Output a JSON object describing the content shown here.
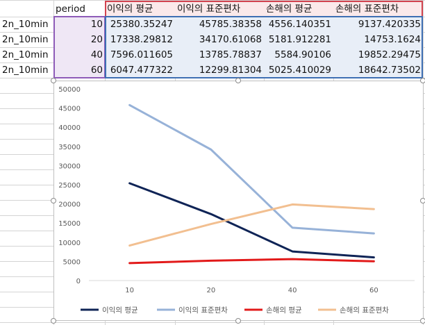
{
  "sheet": {
    "header": {
      "period": "period",
      "columns": [
        "이익의 평균",
        "이익의 표준편차",
        "손해의 평균",
        "손해의 표준편차"
      ]
    },
    "rows": [
      {
        "label": "2n_10min",
        "period": "10",
        "values": [
          "25380.35247",
          "45785.38358",
          "4556.140351",
          "9137.420335"
        ]
      },
      {
        "label": "2n_10min",
        "period": "20",
        "values": [
          "17338.29812",
          "34170.61068",
          "5181.912281",
          "14753.1624"
        ]
      },
      {
        "label": "2n_10min",
        "period": "40",
        "values": [
          "7596.011605",
          "13785.78837",
          "5584.90106",
          "19852.29475"
        ]
      },
      {
        "label": "2n_10min",
        "period": "60",
        "values": [
          "6047.477322",
          "12299.81304",
          "5025.410029",
          "18642.73502"
        ]
      }
    ]
  },
  "chart_data": {
    "type": "line",
    "categories": [
      "10",
      "20",
      "40",
      "60"
    ],
    "ylim": [
      0,
      50000
    ],
    "yticks": [
      "0",
      "5000",
      "10000",
      "15000",
      "20000",
      "25000",
      "30000",
      "35000",
      "40000",
      "45000",
      "50000"
    ],
    "grid": false,
    "legend_position": "bottom",
    "series": [
      {
        "name": "이익의 평균",
        "color": "#0f2456",
        "values": [
          25380.35247,
          17338.29812,
          7596.011605,
          6047.477322
        ]
      },
      {
        "name": "이익의 표준편차",
        "color": "#97b2d8",
        "values": [
          45785.38358,
          34170.61068,
          13785.78837,
          12299.81304
        ]
      },
      {
        "name": "손해의 평균",
        "color": "#e21a1a",
        "values": [
          4556.140351,
          5181.912281,
          5584.90106,
          5025.410029
        ]
      },
      {
        "name": "손해의 표준편차",
        "color": "#f2bf90",
        "values": [
          9137.420335,
          14753.1624,
          19852.29475,
          18642.73502
        ]
      }
    ]
  }
}
